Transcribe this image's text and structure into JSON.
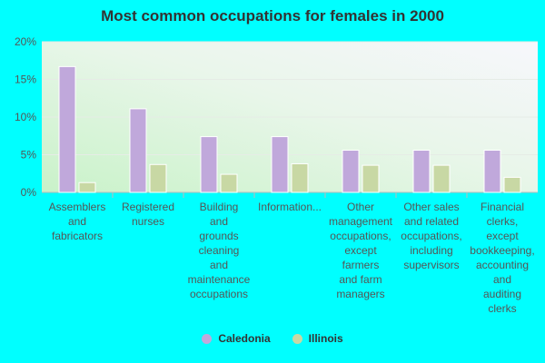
{
  "chart_data": {
    "type": "bar",
    "title": "Most common occupations for females in 2000",
    "xlabel": "",
    "ylabel": "",
    "ylim": [
      0,
      20
    ],
    "y_ticks": [
      "0%",
      "5%",
      "10%",
      "15%",
      "20%"
    ],
    "grid": true,
    "legend_position": "bottom-center",
    "categories": [
      "Assemblers and fabricators",
      "Registered nurses",
      "Building and grounds cleaning and maintenance occupations",
      "Information...",
      "Other management occupations, except farmers and farm managers",
      "Other sales and related occupations, including supervisors",
      "Financial clerks, except bookkeeping, accounting and auditing clerks"
    ],
    "category_lines": [
      [
        "Assemblers",
        "and",
        "fabricators"
      ],
      [
        "Registered",
        "nurses"
      ],
      [
        "Building",
        "and",
        "grounds",
        "cleaning",
        "and",
        "maintenance",
        "occupations"
      ],
      [
        "Information..."
      ],
      [
        "Other",
        "management",
        "occupations,",
        "except",
        "farmers",
        "and farm",
        "managers"
      ],
      [
        "Other sales",
        "and related",
        "occupations,",
        "including",
        "supervisors"
      ],
      [
        "Financial",
        "clerks,",
        "except",
        "bookkeeping,",
        "accounting",
        "and",
        "auditing",
        "clerks"
      ]
    ],
    "series": [
      {
        "name": "Caledonia",
        "color": "#c0a8db",
        "values": [
          16.7,
          11.1,
          7.4,
          7.4,
          5.6,
          5.6,
          5.6
        ]
      },
      {
        "name": "Illinois",
        "color": "#c8d8a4",
        "values": [
          1.3,
          3.7,
          2.4,
          3.8,
          3.6,
          3.6,
          2.0
        ]
      }
    ]
  }
}
